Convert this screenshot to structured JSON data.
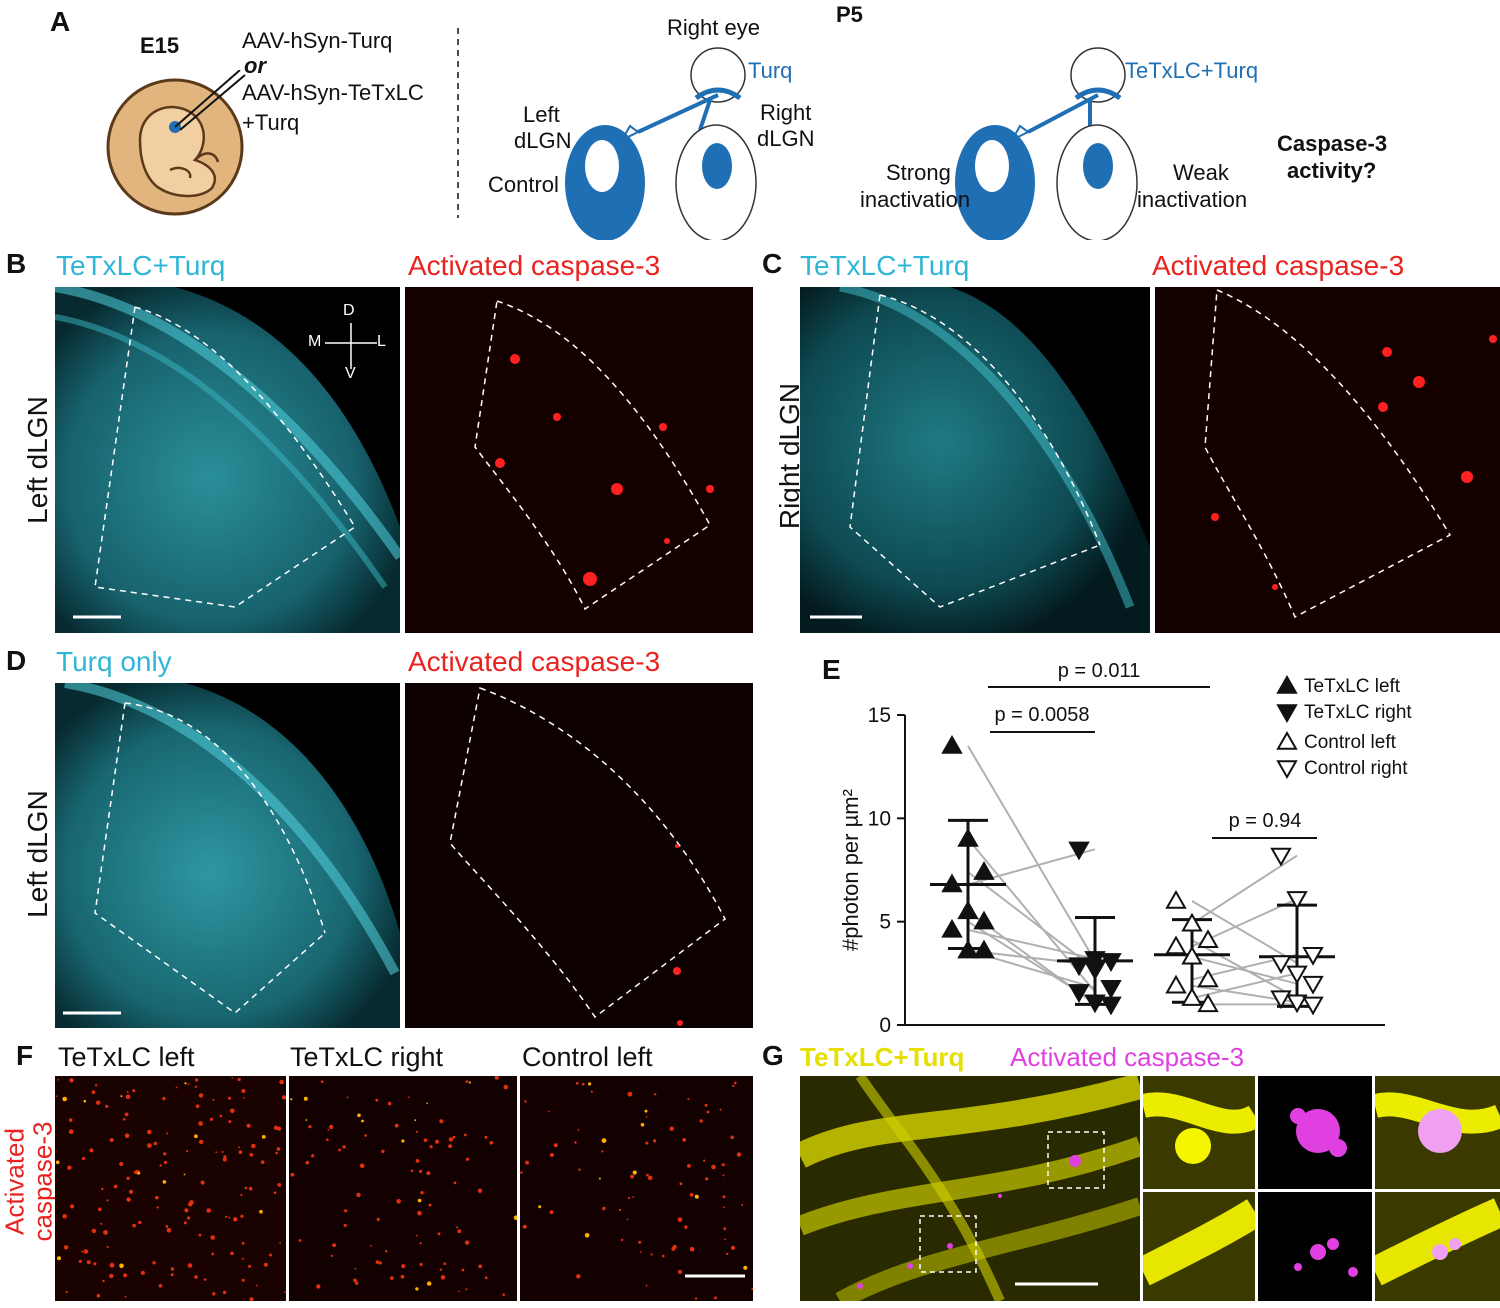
{
  "panels": {
    "A": {
      "letter": "A",
      "age_embryo": "E15",
      "virus_line1": "AAV-hSyn-Turq",
      "virus_or": "or",
      "virus_line2": "AAV-hSyn-TeTxLC",
      "virus_line3": "+Turq",
      "right_eye": "Right eye",
      "turq": "Turq",
      "left_dlgn_1": "Left",
      "left_dlgn_2": "dLGN",
      "right_dlgn_1": "Right",
      "right_dlgn_2": "dLGN",
      "control": "Control",
      "age_p5": "P5",
      "tetx_turq": "TeTxLC+Turq",
      "strong_1": "Strong",
      "strong_2": "inactivation",
      "weak_1": "Weak",
      "weak_2": "inactivation",
      "caspase_q1": "Caspase-3",
      "caspase_q2": "activity?"
    },
    "B": {
      "letter": "B",
      "title_left": "TeTxLC+Turq",
      "title_right": "Activated caspase-3",
      "side_label": "Left dLGN",
      "axis_d": "D",
      "axis_m": "M",
      "axis_l": "L",
      "axis_v": "V"
    },
    "C": {
      "letter": "C",
      "title_left": "TeTxLC+Turq",
      "title_right": "Activated caspase-3",
      "side_label": "Right dLGN"
    },
    "D": {
      "letter": "D",
      "title_left": "Turq only",
      "title_right": "Activated caspase-3",
      "side_label": "Left dLGN"
    },
    "E": {
      "letter": "E",
      "ylabel": "#photon per µm²",
      "p_top": "p = 0.011",
      "p_left": "p = 0.0058",
      "p_right": "p = 0.94",
      "legend": [
        "TeTxLC left",
        "TeTxLC right",
        "Control left",
        "Control right"
      ]
    },
    "F": {
      "letter": "F",
      "titles": [
        "TeTxLC left",
        "TeTxLC right",
        "Control left"
      ],
      "side_label_1": "Activated",
      "side_label_2": "caspase-3"
    },
    "G": {
      "letter": "G",
      "title_yellow": "TeTxLC+Turq",
      "title_magenta": "Activated caspase-3"
    }
  },
  "colors": {
    "cyan": "#2fb6d6",
    "red": "#e8231f",
    "blue": "#1f6fb4",
    "yellow": "#e6e000",
    "magenta": "#e040e0"
  },
  "chart_data": {
    "type": "scatter",
    "ylim": [
      0,
      15
    ],
    "yticks": [
      0,
      5,
      10,
      15
    ],
    "series": [
      {
        "name": "TeTxLC left",
        "marker": "triangle-up-filled",
        "values": [
          13.5,
          9.0,
          7.4,
          6.8,
          5.5,
          5.0,
          4.6,
          3.6,
          3.6
        ],
        "mean": 6.8,
        "sd_low": 3.7,
        "sd_high": 9.9
      },
      {
        "name": "TeTxLC right",
        "marker": "triangle-down-filled",
        "values": [
          8.5,
          3.2,
          3.1,
          2.9,
          2.7,
          1.8,
          1.6,
          1.1,
          1.0
        ],
        "mean": 3.1,
        "sd_low": 1.0,
        "sd_high": 5.2
      },
      {
        "name": "Control left",
        "marker": "triangle-up-open",
        "values": [
          6.0,
          4.9,
          4.1,
          3.8,
          3.3,
          2.2,
          1.9,
          1.3,
          1.0
        ],
        "mean": 3.4,
        "sd_low": 1.1,
        "sd_high": 5.1
      },
      {
        "name": "Control right",
        "marker": "triangle-down-open",
        "values": [
          8.2,
          6.1,
          3.4,
          3.0,
          2.5,
          2.0,
          1.3,
          1.1,
          1.0
        ],
        "mean": 3.3,
        "sd_low": 0.9,
        "sd_high": 5.8
      }
    ],
    "pairs_left": [
      [
        13.5,
        3.1
      ],
      [
        9.0,
        1.6
      ],
      [
        7.4,
        2.7
      ],
      [
        6.8,
        8.5
      ],
      [
        5.5,
        1.0
      ],
      [
        5.0,
        1.1
      ],
      [
        4.6,
        3.2
      ],
      [
        3.6,
        2.9
      ],
      [
        3.6,
        1.8
      ]
    ],
    "pairs_right": [
      [
        6.0,
        3.0
      ],
      [
        4.9,
        8.2
      ],
      [
        4.1,
        1.3
      ],
      [
        3.8,
        6.1
      ],
      [
        3.3,
        2.0
      ],
      [
        2.2,
        3.4
      ],
      [
        1.9,
        1.1
      ],
      [
        1.3,
        2.5
      ],
      [
        1.0,
        1.0
      ]
    ]
  }
}
